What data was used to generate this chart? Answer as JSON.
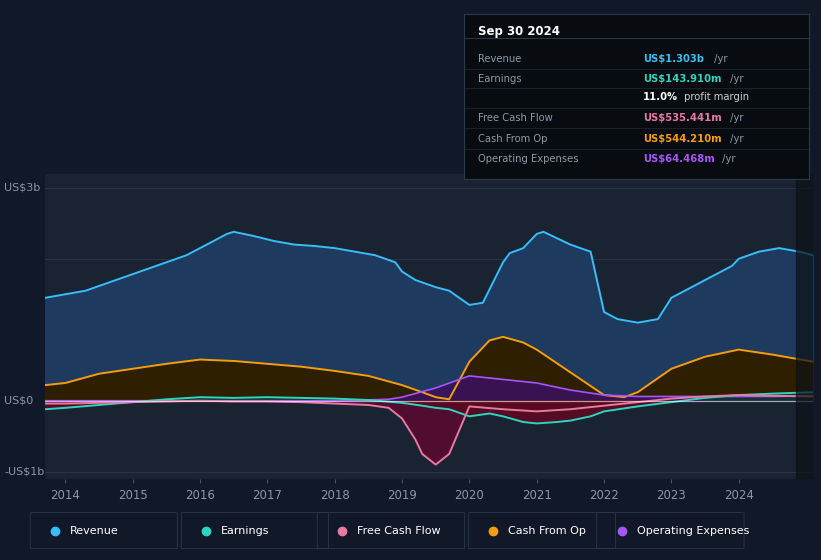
{
  "background_color": "#111827",
  "plot_bg_color": "#1a2332",
  "colors": {
    "revenue": "#38bdf8",
    "earnings": "#2dd4bf",
    "free_cash_flow": "#e879a0",
    "cash_from_op": "#f59e0b",
    "operating_expenses": "#a855f7",
    "revenue_fill": "#1e3a5f",
    "cash_from_op_fill_dark": "#2a1f00",
    "earnings_neg_fill": "#4a0a1a",
    "free_cash_flow_neg_fill": "#5a0a30"
  },
  "ylim": [
    -1.1,
    3.2
  ],
  "xlim": [
    2013.7,
    2025.1
  ],
  "xticks": [
    2014,
    2015,
    2016,
    2017,
    2018,
    2019,
    2020,
    2021,
    2022,
    2023,
    2024
  ],
  "info_title": "Sep 30 2024",
  "info_rows": [
    {
      "label": "Revenue",
      "value": "US$1.303b",
      "suffix": " /yr",
      "color": "#38bdf8"
    },
    {
      "label": "Earnings",
      "value": "US$143.910m",
      "suffix": " /yr",
      "color": "#2dd4bf"
    },
    {
      "label": "",
      "value": "11.0%",
      "suffix": " profit margin",
      "color": "#ffffff"
    },
    {
      "label": "Free Cash Flow",
      "value": "US$535.441m",
      "suffix": " /yr",
      "color": "#e879a0"
    },
    {
      "label": "Cash From Op",
      "value": "US$544.210m",
      "suffix": " /yr",
      "color": "#f59e0b"
    },
    {
      "label": "Operating Expenses",
      "value": "US$64.468m",
      "suffix": " /yr",
      "color": "#a855f7"
    }
  ],
  "legend": [
    {
      "label": "Revenue",
      "color": "#38bdf8"
    },
    {
      "label": "Earnings",
      "color": "#2dd4bf"
    },
    {
      "label": "Free Cash Flow",
      "color": "#e879a0"
    },
    {
      "label": "Cash From Op",
      "color": "#f59e0b"
    },
    {
      "label": "Operating Expenses",
      "color": "#a855f7"
    }
  ],
  "revenue_x": [
    2013.7,
    2014.0,
    2014.3,
    2014.6,
    2014.9,
    2015.2,
    2015.5,
    2015.8,
    2016.1,
    2016.4,
    2016.5,
    2016.8,
    2017.1,
    2017.4,
    2017.7,
    2018.0,
    2018.3,
    2018.6,
    2018.9,
    2019.0,
    2019.2,
    2019.5,
    2019.7,
    2020.0,
    2020.2,
    2020.5,
    2020.6,
    2020.8,
    2021.0,
    2021.1,
    2021.5,
    2021.8,
    2022.0,
    2022.2,
    2022.5,
    2022.8,
    2023.0,
    2023.3,
    2023.6,
    2023.9,
    2024.0,
    2024.3,
    2024.6,
    2024.9,
    2025.1
  ],
  "revenue_y": [
    1.45,
    1.5,
    1.55,
    1.65,
    1.75,
    1.85,
    1.95,
    2.05,
    2.2,
    2.35,
    2.38,
    2.32,
    2.25,
    2.2,
    2.18,
    2.15,
    2.1,
    2.05,
    1.95,
    1.82,
    1.7,
    1.6,
    1.55,
    1.35,
    1.38,
    1.95,
    2.08,
    2.15,
    2.35,
    2.38,
    2.2,
    2.1,
    1.25,
    1.15,
    1.1,
    1.15,
    1.45,
    1.6,
    1.75,
    1.9,
    2.0,
    2.1,
    2.15,
    2.1,
    2.05
  ],
  "cash_from_op_x": [
    2013.7,
    2014.0,
    2014.5,
    2015.0,
    2015.5,
    2016.0,
    2016.5,
    2017.0,
    2017.5,
    2018.0,
    2018.5,
    2019.0,
    2019.3,
    2019.5,
    2019.7,
    2020.0,
    2020.3,
    2020.5,
    2020.8,
    2021.0,
    2021.5,
    2022.0,
    2022.3,
    2022.5,
    2023.0,
    2023.5,
    2024.0,
    2024.5,
    2025.1
  ],
  "cash_from_op_y": [
    0.22,
    0.25,
    0.38,
    0.45,
    0.52,
    0.58,
    0.56,
    0.52,
    0.48,
    0.42,
    0.35,
    0.22,
    0.12,
    0.05,
    0.02,
    0.55,
    0.85,
    0.9,
    0.82,
    0.72,
    0.4,
    0.08,
    0.05,
    0.12,
    0.45,
    0.62,
    0.72,
    0.65,
    0.55
  ],
  "earnings_x": [
    2013.7,
    2014.0,
    2014.5,
    2015.0,
    2015.5,
    2016.0,
    2016.5,
    2017.0,
    2017.5,
    2018.0,
    2018.5,
    2019.0,
    2019.3,
    2019.5,
    2019.7,
    2020.0,
    2020.3,
    2020.5,
    2020.8,
    2021.0,
    2021.3,
    2021.5,
    2021.8,
    2022.0,
    2022.5,
    2023.0,
    2023.5,
    2024.0,
    2024.5,
    2025.1
  ],
  "earnings_y": [
    -0.12,
    -0.1,
    -0.06,
    -0.02,
    0.02,
    0.05,
    0.04,
    0.05,
    0.04,
    0.03,
    0.01,
    -0.03,
    -0.07,
    -0.1,
    -0.12,
    -0.22,
    -0.18,
    -0.22,
    -0.3,
    -0.32,
    -0.3,
    -0.28,
    -0.22,
    -0.15,
    -0.08,
    -0.02,
    0.04,
    0.08,
    0.1,
    0.12
  ],
  "free_cash_flow_x": [
    2013.7,
    2014.0,
    2014.5,
    2015.0,
    2015.5,
    2016.0,
    2016.5,
    2017.0,
    2017.5,
    2018.0,
    2018.5,
    2018.8,
    2019.0,
    2019.2,
    2019.3,
    2019.5,
    2019.7,
    2020.0,
    2020.5,
    2021.0,
    2021.5,
    2022.0,
    2022.5,
    2023.0,
    2023.5,
    2024.0,
    2024.5,
    2025.1
  ],
  "free_cash_flow_y": [
    -0.04,
    -0.04,
    -0.03,
    -0.02,
    -0.01,
    0.0,
    -0.01,
    -0.01,
    -0.02,
    -0.04,
    -0.06,
    -0.1,
    -0.25,
    -0.55,
    -0.75,
    -0.9,
    -0.75,
    -0.08,
    -0.12,
    -0.15,
    -0.12,
    -0.07,
    -0.02,
    0.03,
    0.06,
    0.08,
    0.07,
    0.06
  ],
  "operating_expenses_x": [
    2013.7,
    2014.5,
    2015.0,
    2016.0,
    2017.0,
    2018.0,
    2018.8,
    2019.0,
    2019.5,
    2020.0,
    2020.5,
    2021.0,
    2021.5,
    2022.0,
    2022.5,
    2023.0,
    2023.5,
    2024.0,
    2024.5,
    2025.1
  ],
  "operating_expenses_y": [
    0.0,
    0.0,
    0.0,
    0.0,
    0.0,
    0.0,
    0.02,
    0.05,
    0.18,
    0.35,
    0.3,
    0.25,
    0.15,
    0.08,
    0.06,
    0.06,
    0.06,
    0.06,
    0.06,
    0.07
  ]
}
